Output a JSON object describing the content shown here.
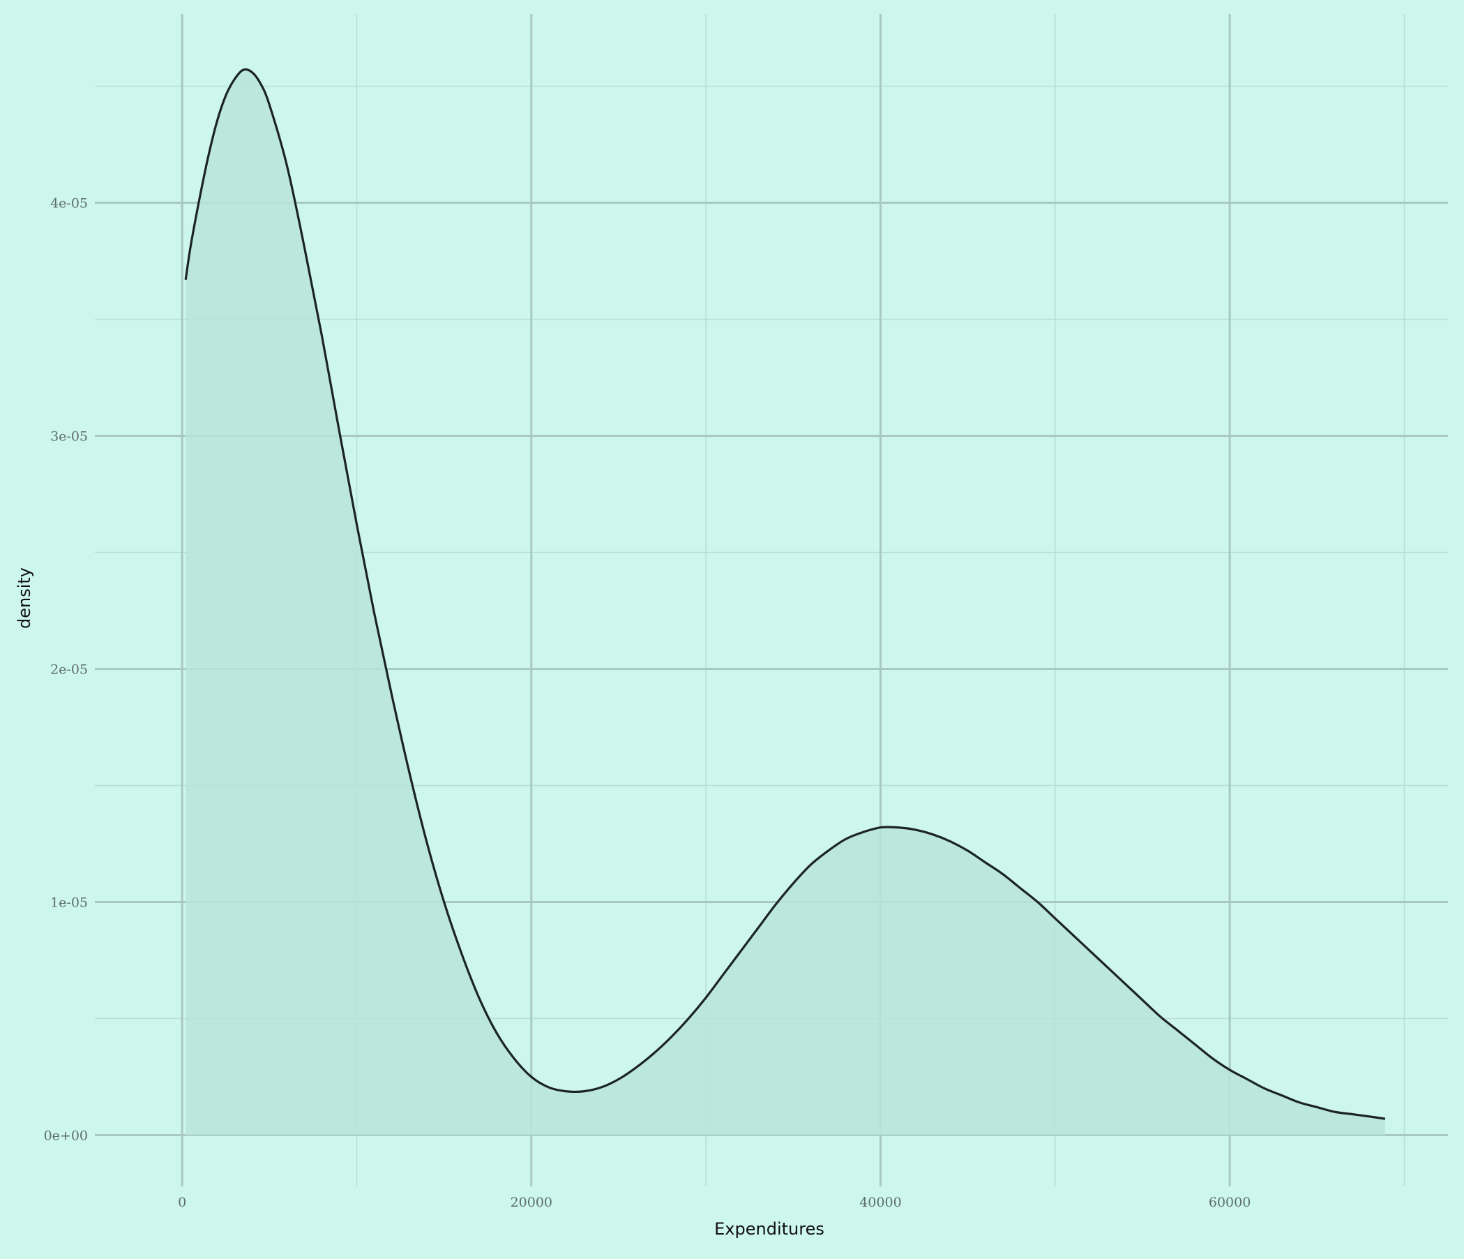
{
  "chart_data": {
    "type": "area",
    "title": "",
    "xlabel": "Expenditures",
    "ylabel": "density",
    "xlim": [
      -5000,
      72500
    ],
    "ylim": [
      -2.2e-06,
      4.81e-05
    ],
    "x_ticks": [
      0,
      20000,
      40000,
      60000
    ],
    "x_tick_labels": [
      "0",
      "20000",
      "40000",
      "60000"
    ],
    "y_ticks": [
      0,
      1e-05,
      2e-05,
      3e-05,
      4e-05
    ],
    "y_tick_labels": [
      "0e+00",
      "1e-05",
      "2e-05",
      "3e-05",
      "4e-05"
    ],
    "grid": true,
    "legend": "none",
    "colors": {
      "background": "#cdf6ec",
      "major_grid": "#a8c9c1",
      "minor_grid": "#b9ddd4",
      "fill": "#b9e4da",
      "line": "#1c2422",
      "tick_text": "#5d6e6a",
      "title_text": "#111111"
    },
    "series": [
      {
        "x": [
          200,
          500,
          1000,
          1500,
          2000,
          2500,
          3000,
          3500,
          4000,
          4500,
          5000,
          6000,
          7000,
          8000,
          9000,
          10000,
          11000,
          12000,
          13000,
          14000,
          15000,
          16000,
          17000,
          18000,
          19000,
          20000,
          21000,
          22000,
          23000,
          24000,
          25000,
          26000,
          27000,
          28000,
          29000,
          30000,
          31000,
          32000,
          33000,
          34000,
          35000,
          36000,
          37000,
          38000,
          39000,
          40000,
          41000,
          42000,
          43000,
          44000,
          45000,
          46000,
          47000,
          48000,
          49000,
          50000,
          51000,
          52000,
          53000,
          54000,
          55000,
          56000,
          57000,
          58000,
          59000,
          60000,
          61000,
          62000,
          63000,
          64000,
          65000,
          66000,
          67000,
          68000,
          68900
        ],
        "y": [
          3.67e-05,
          3.82e-05,
          4.02e-05,
          4.2e-05,
          4.35e-05,
          4.46e-05,
          4.53e-05,
          4.57e-05,
          4.56e-05,
          4.51e-05,
          4.42e-05,
          4.16e-05,
          3.81e-05,
          3.43e-05,
          3.02e-05,
          2.62e-05,
          2.24e-05,
          1.89e-05,
          1.56e-05,
          1.26e-05,
          1e-05,
          7.8e-06,
          5.9e-06,
          4.4e-06,
          3.3e-06,
          2.5e-06,
          2.05e-06,
          1.88e-06,
          1.88e-06,
          2.05e-06,
          2.4e-06,
          2.9e-06,
          3.5e-06,
          4.2e-06,
          5e-06,
          5.9e-06,
          6.9e-06,
          7.9e-06,
          8.9e-06,
          9.9e-06,
          1.08e-05,
          1.16e-05,
          1.22e-05,
          1.27e-05,
          1.3e-05,
          1.32e-05,
          1.32e-05,
          1.31e-05,
          1.29e-05,
          1.26e-05,
          1.22e-05,
          1.17e-05,
          1.12e-05,
          1.06e-05,
          1e-05,
          9.3e-06,
          8.6e-06,
          7.9e-06,
          7.2e-06,
          6.5e-06,
          5.8e-06,
          5.1e-06,
          4.5e-06,
          3.9e-06,
          3.3e-06,
          2.8e-06,
          2.4e-06,
          2e-06,
          1.7e-06,
          1.4e-06,
          1.2e-06,
          1e-06,
          9e-07,
          8e-07,
          7e-07
        ]
      }
    ]
  }
}
